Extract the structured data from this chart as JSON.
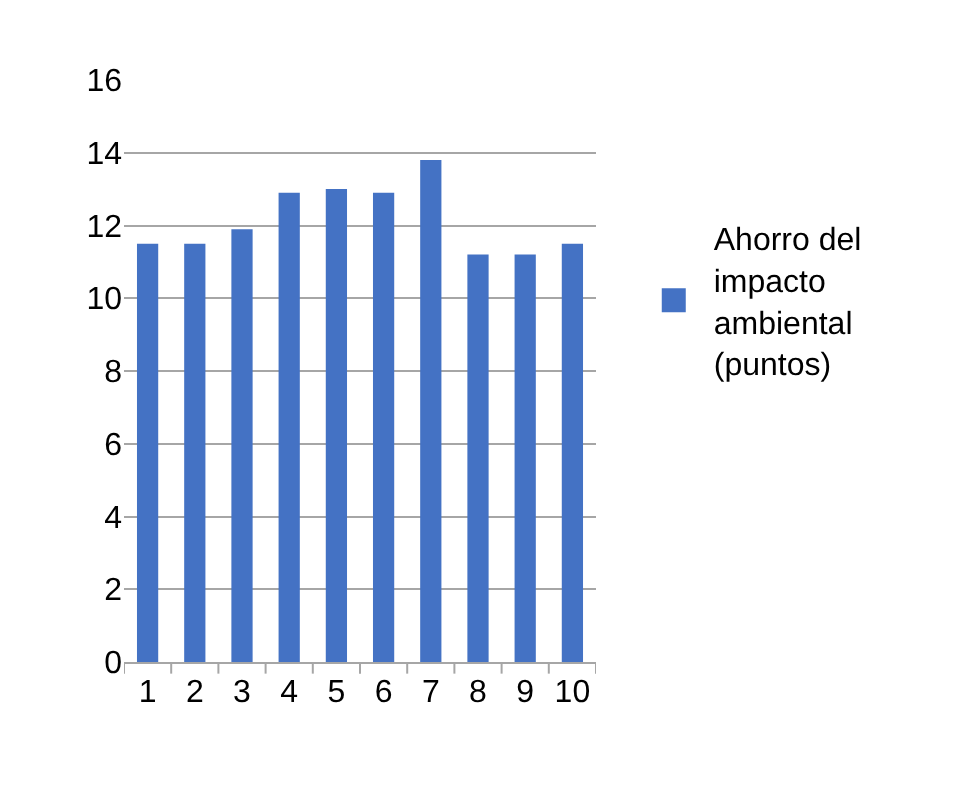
{
  "chart_data": {
    "type": "bar",
    "categories": [
      "1",
      "2",
      "3",
      "4",
      "5",
      "6",
      "7",
      "8",
      "9",
      "10"
    ],
    "series": [
      {
        "name": "Ahorro del impacto ambiental (puntos)",
        "color": "#4472c4",
        "values": [
          11.5,
          11.5,
          11.9,
          12.9,
          13.0,
          12.9,
          13.8,
          11.2,
          11.2,
          11.5
        ]
      }
    ],
    "ylim": [
      0,
      16
    ],
    "yticks": [
      0,
      2,
      4,
      6,
      8,
      10,
      12,
      14,
      16
    ],
    "grid": "y",
    "legend": "right"
  }
}
